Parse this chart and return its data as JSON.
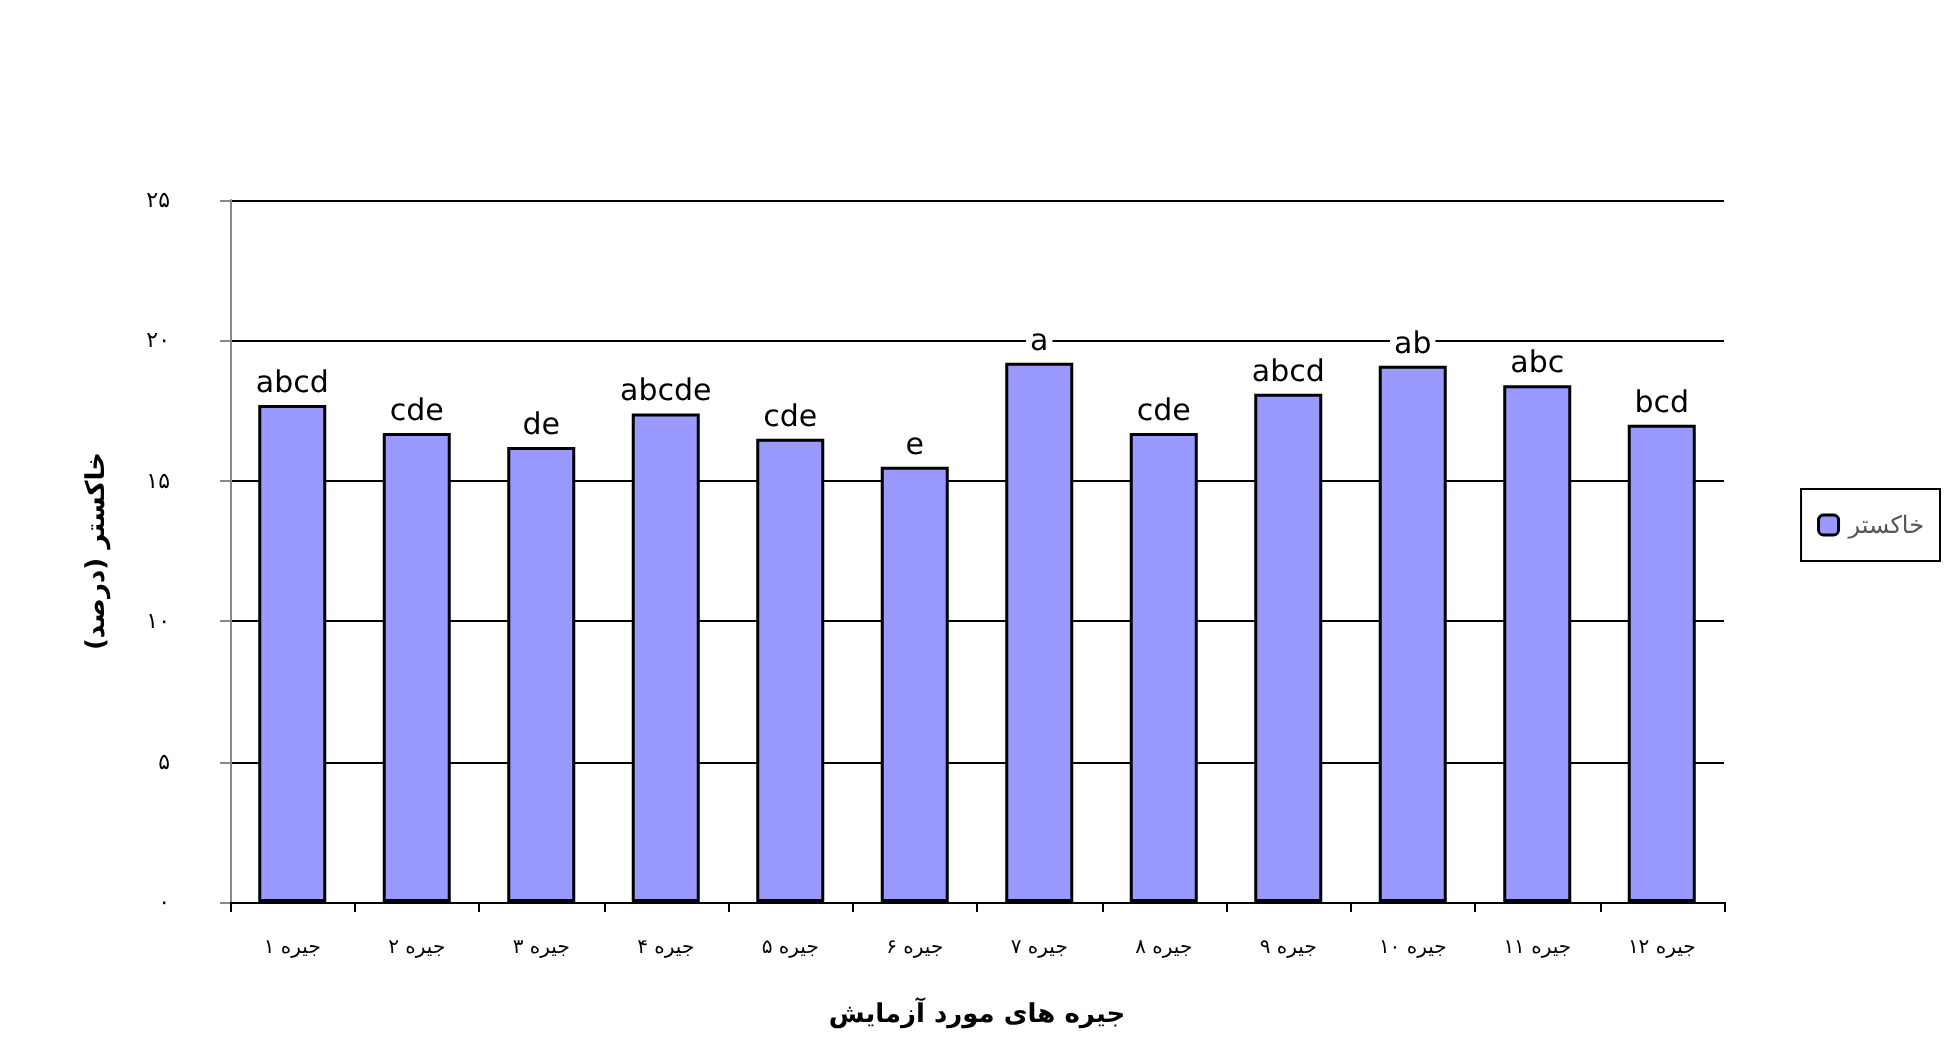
{
  "chart_data": {
    "type": "bar",
    "xlabel": "جیره های مورد آزمایش",
    "ylabel": "خاکستر (درصد)",
    "categories": [
      "جیره ۱",
      "جیره ۲",
      "جیره ۳",
      "جیره ۴",
      "جیره ۵",
      "جیره ۶",
      "جیره ۷",
      "جیره ۸",
      "جیره ۹",
      "جیره ۱۰",
      "جیره ۱۱",
      "جیره ۱۲"
    ],
    "series": [
      {
        "name": "خاکستر",
        "color": "#9999ff",
        "values": [
          17.7,
          16.7,
          16.2,
          17.4,
          16.5,
          15.5,
          19.2,
          16.7,
          18.1,
          19.1,
          18.4,
          17.0
        ],
        "value_labels": [
          "abcd",
          "cde",
          "de",
          "abcde",
          "cde",
          "e",
          "a",
          "cde",
          "abcd",
          "ab",
          "abc",
          "bcd"
        ]
      }
    ],
    "ylim": [
      0,
      25
    ],
    "yticks": [
      {
        "value": 0,
        "label": "۰"
      },
      {
        "value": 5,
        "label": "۵"
      },
      {
        "value": 10,
        "label": "۱۰"
      },
      {
        "value": 15,
        "label": "۱۵"
      },
      {
        "value": 20,
        "label": "۲۰"
      },
      {
        "value": 25,
        "label": "۲۵"
      }
    ],
    "grid": "y",
    "legend": "right"
  }
}
